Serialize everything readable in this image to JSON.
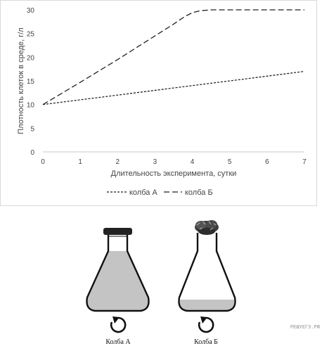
{
  "chart_data": {
    "type": "line",
    "title": "",
    "xlabel": "Длительность эксперимента, сутки",
    "ylabel": "Плотность клеток в среде, г/л",
    "xlim": [
      0,
      7
    ],
    "ylim": [
      0,
      30
    ],
    "xticks": [
      "0",
      "1",
      "2",
      "3",
      "4",
      "5",
      "6",
      "7"
    ],
    "yticks": [
      "0",
      "5",
      "10",
      "15",
      "20",
      "25",
      "30"
    ],
    "grid": false,
    "legend_position": "bottom",
    "series": [
      {
        "name": "колба А",
        "dash": "short-dash",
        "x": [
          0,
          7
        ],
        "y": [
          10,
          17
        ]
      },
      {
        "name": "колба Б",
        "dash": "long-dash",
        "x": [
          0,
          1,
          2,
          3,
          3.5,
          3.8,
          4.0,
          4.2,
          4.5,
          5.0,
          6.0,
          7.0
        ],
        "y": [
          10,
          14.7,
          19.5,
          24.5,
          27,
          28.6,
          29.4,
          29.8,
          30,
          30,
          30,
          30
        ]
      }
    ],
    "colors": {
      "line": "#222222",
      "axis": "#c8c8c8",
      "text": "#444444"
    }
  },
  "flasks": {
    "a": {
      "label": "Колба А",
      "closure": "cap",
      "liquid": "full"
    },
    "b": {
      "label": "Колба Б",
      "closure": "cotton-plug",
      "liquid": "bottom-layer"
    },
    "rotation_icon": "rotation-arrow",
    "liquid_color": "#c4c4c4"
  },
  "watermark": "РЕШУЕГЭ.РФ"
}
